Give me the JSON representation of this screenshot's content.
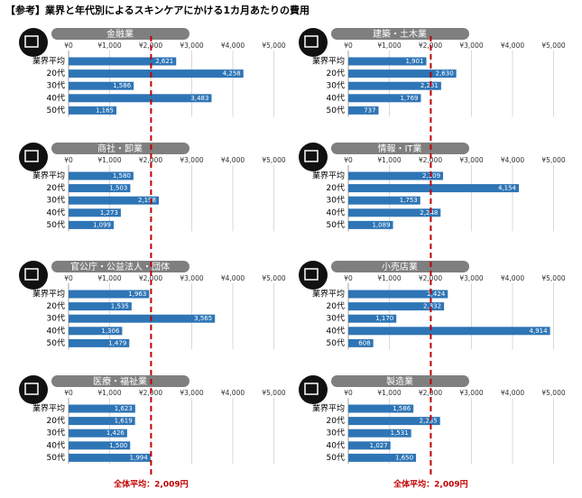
{
  "title": "【参考】業界と年代別によるスキンケアにかける1カ月あたりの費用",
  "reference": {
    "value": 2009,
    "label": "全体平均：2,009円"
  },
  "chart_data": [
    {
      "type": "bar",
      "orientation": "horizontal",
      "title": "金融業",
      "categories": [
        "業界平均",
        "20代",
        "30代",
        "40代",
        "50代"
      ],
      "values": [
        2621,
        4258,
        1586,
        3483,
        1165
      ],
      "value_labels": [
        "2,621",
        "4,258",
        "1,586",
        "3,483",
        "1,165"
      ],
      "color": "#2e75b6",
      "xlim": [
        0,
        5000
      ],
      "xticks": [
        {
          "value": 0,
          "label": "¥0"
        },
        {
          "value": 1000,
          "label": "¥1,000"
        },
        {
          "value": 2000,
          "label": "¥2,000"
        },
        {
          "value": 3000,
          "label": "¥3,000"
        },
        {
          "value": 4000,
          "label": "¥4,000"
        },
        {
          "value": 5000,
          "label": "¥5,000"
        }
      ],
      "grid": true
    },
    {
      "type": "bar",
      "orientation": "horizontal",
      "title": "建築・土木業",
      "categories": [
        "業界平均",
        "20代",
        "30代",
        "40代",
        "50代"
      ],
      "values": [
        1901,
        2630,
        2261,
        1769,
        737
      ],
      "value_labels": [
        "1,901",
        "2,630",
        "2,261",
        "1,769",
        "737"
      ],
      "color": "#2e75b6",
      "xlim": [
        0,
        5000
      ],
      "xticks": [
        {
          "value": 0,
          "label": "¥0"
        },
        {
          "value": 1000,
          "label": "¥1,000"
        },
        {
          "value": 2000,
          "label": "¥2,000"
        },
        {
          "value": 3000,
          "label": "¥3,000"
        },
        {
          "value": 4000,
          "label": "¥4,000"
        },
        {
          "value": 5000,
          "label": "¥5,000"
        }
      ],
      "grid": true
    },
    {
      "type": "bar",
      "orientation": "horizontal",
      "title": "商社・卸業",
      "categories": [
        "業界平均",
        "20代",
        "30代",
        "40代",
        "50代"
      ],
      "values": [
        1580,
        1503,
        2198,
        1273,
        1099
      ],
      "value_labels": [
        "1,580",
        "1,503",
        "2,198",
        "1,273",
        "1,099"
      ],
      "color": "#2e75b6",
      "xlim": [
        0,
        5000
      ],
      "xticks": [
        {
          "value": 0,
          "label": "¥0"
        },
        {
          "value": 1000,
          "label": "¥1,000"
        },
        {
          "value": 2000,
          "label": "¥2,000"
        },
        {
          "value": 3000,
          "label": "¥3,000"
        },
        {
          "value": 4000,
          "label": "¥4,000"
        },
        {
          "value": 5000,
          "label": "¥5,000"
        }
      ],
      "grid": true
    },
    {
      "type": "bar",
      "orientation": "horizontal",
      "title": "情報・IT業",
      "categories": [
        "業界平均",
        "20代",
        "30代",
        "40代",
        "50代"
      ],
      "values": [
        2309,
        4154,
        1753,
        2248,
        1089
      ],
      "value_labels": [
        "2,309",
        "4,154",
        "1,753",
        "2,248",
        "1,089"
      ],
      "color": "#2e75b6",
      "xlim": [
        0,
        5000
      ],
      "xticks": [
        {
          "value": 0,
          "label": "¥0"
        },
        {
          "value": 1000,
          "label": "¥1,000"
        },
        {
          "value": 2000,
          "label": "¥2,000"
        },
        {
          "value": 3000,
          "label": "¥3,000"
        },
        {
          "value": 4000,
          "label": "¥4,000"
        },
        {
          "value": 5000,
          "label": "¥5,000"
        }
      ],
      "grid": true
    },
    {
      "type": "bar",
      "orientation": "horizontal",
      "title": "官公庁・公益法人・団体",
      "categories": [
        "業界平均",
        "20代",
        "30代",
        "40代",
        "50代"
      ],
      "values": [
        1963,
        1535,
        3565,
        1306,
        1479
      ],
      "value_labels": [
        "1,963",
        "1,535",
        "3,565",
        "1,306",
        "1,479"
      ],
      "color": "#2e75b6",
      "xlim": [
        0,
        5000
      ],
      "xticks": [
        {
          "value": 0,
          "label": "¥0"
        },
        {
          "value": 1000,
          "label": "¥1,000"
        },
        {
          "value": 2000,
          "label": "¥2,000"
        },
        {
          "value": 3000,
          "label": "¥3,000"
        },
        {
          "value": 4000,
          "label": "¥4,000"
        },
        {
          "value": 5000,
          "label": "¥5,000"
        }
      ],
      "grid": true
    },
    {
      "type": "bar",
      "orientation": "horizontal",
      "title": "小売店業",
      "categories": [
        "業界平均",
        "20代",
        "30代",
        "40代",
        "50代"
      ],
      "values": [
        2424,
        2332,
        1170,
        4914,
        608
      ],
      "value_labels": [
        "2,424",
        "2,332",
        "1,170",
        "4,914",
        "608"
      ],
      "color": "#2e75b6",
      "xlim": [
        0,
        5000
      ],
      "xticks": [
        {
          "value": 0,
          "label": "¥0"
        },
        {
          "value": 1000,
          "label": "¥1,000"
        },
        {
          "value": 2000,
          "label": "¥2,000"
        },
        {
          "value": 3000,
          "label": "¥3,000"
        },
        {
          "value": 4000,
          "label": "¥4,000"
        },
        {
          "value": 5000,
          "label": "¥5,000"
        }
      ],
      "grid": true
    },
    {
      "type": "bar",
      "orientation": "horizontal",
      "title": "医療・福祉業",
      "categories": [
        "業界平均",
        "20代",
        "30代",
        "40代",
        "50代"
      ],
      "values": [
        1623,
        1619,
        1426,
        1500,
        1994
      ],
      "value_labels": [
        "1,623",
        "1,619",
        "1,426",
        "1,500",
        "1,994"
      ],
      "color": "#2e75b6",
      "xlim": [
        0,
        5000
      ],
      "xticks": [
        {
          "value": 0,
          "label": "¥0"
        },
        {
          "value": 1000,
          "label": "¥1,000"
        },
        {
          "value": 2000,
          "label": "¥2,000"
        },
        {
          "value": 3000,
          "label": "¥3,000"
        },
        {
          "value": 4000,
          "label": "¥4,000"
        },
        {
          "value": 5000,
          "label": "¥5,000"
        }
      ],
      "grid": true
    },
    {
      "type": "bar",
      "orientation": "horizontal",
      "title": "製造業",
      "categories": [
        "業界平均",
        "20代",
        "30代",
        "40代",
        "50代"
      ],
      "values": [
        1586,
        2235,
        1531,
        1027,
        1650
      ],
      "value_labels": [
        "1,586",
        "2,235",
        "1,531",
        "1,027",
        "1,650"
      ],
      "color": "#2e75b6",
      "xlim": [
        0,
        5000
      ],
      "xticks": [
        {
          "value": 0,
          "label": "¥0"
        },
        {
          "value": 1000,
          "label": "¥1,000"
        },
        {
          "value": 2000,
          "label": "¥2,000"
        },
        {
          "value": 3000,
          "label": "¥3,000"
        },
        {
          "value": 4000,
          "label": "¥4,000"
        },
        {
          "value": 5000,
          "label": "¥5,000"
        }
      ],
      "grid": true
    }
  ]
}
